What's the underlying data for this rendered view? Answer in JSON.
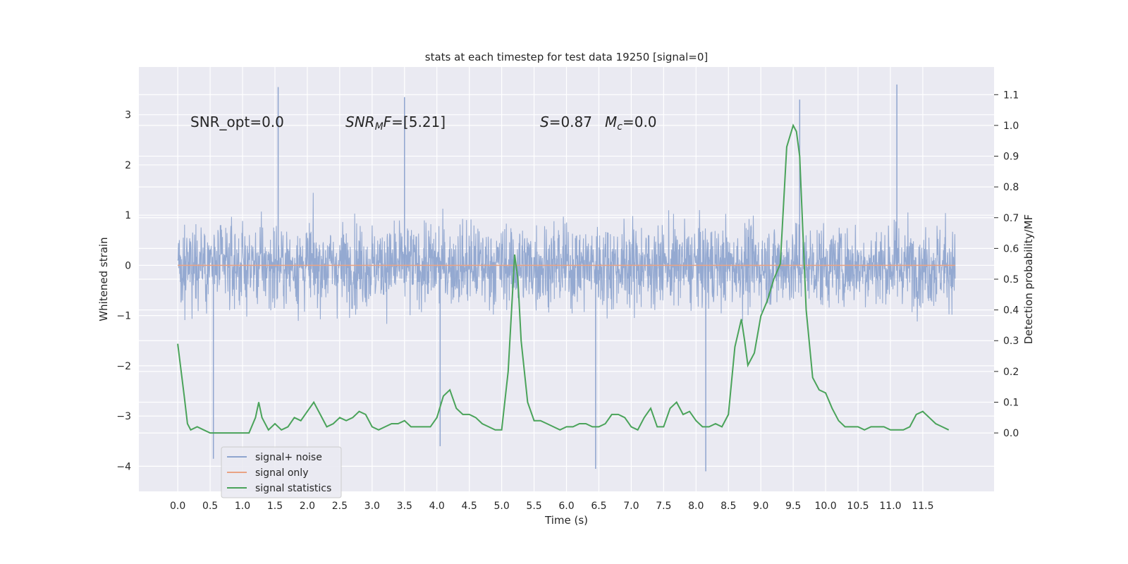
{
  "chart_data": {
    "type": "line",
    "title": "stats at each timestep for test data 19250 [signal=0]",
    "xlabel": "Time (s)",
    "ylabel_left": "Whitened strain",
    "ylabel_right": "Detection probability/MF",
    "xlim": [
      -0.6,
      12.6
    ],
    "ylim_left": [
      -4.5,
      3.95
    ],
    "ylim_right": [
      -0.19,
      1.19
    ],
    "x_ticks": [
      "0.0",
      "0.5",
      "1.0",
      "1.5",
      "2.0",
      "2.5",
      "3.0",
      "3.5",
      "4.0",
      "4.5",
      "5.0",
      "5.5",
      "6.0",
      "6.5",
      "7.0",
      "7.5",
      "8.0",
      "8.5",
      "9.0",
      "9.5",
      "10.0",
      "10.5",
      "11.0",
      "11.5"
    ],
    "y_ticks_left": [
      "−4",
      "−3",
      "−2",
      "−1",
      "0",
      "1",
      "2",
      "3"
    ],
    "y_ticks_right": [
      "0.0",
      "0.1",
      "0.2",
      "0.3",
      "0.4",
      "0.5",
      "0.6",
      "0.7",
      "0.8",
      "0.9",
      "1.0",
      "1.1"
    ],
    "grid": true,
    "legend_position": "lower-left",
    "annotations": {
      "snr_opt": "SNR_opt=0.0",
      "snr_mf": "SNR",
      "snr_mf_sub": "M",
      "snr_mf_rest": "F=[5.21]",
      "s_sym": "S",
      "s_val": "=0.87",
      "mc_sym": "M",
      "mc_sub": "c",
      "mc_val": "=0.0"
    },
    "series": [
      {
        "name": "signal+ noise",
        "color": "#8fa5cf",
        "axis": "left",
        "style": "dense noise trace",
        "x_range": [
          0.0,
          12.0
        ],
        "typical_band": [
          -1.5,
          1.5
        ],
        "spike_peaks": [
          {
            "x": 1.55,
            "y": 3.55
          },
          {
            "x": 3.5,
            "y": 3.35
          },
          {
            "x": 6.45,
            "y": -4.05
          },
          {
            "x": 8.15,
            "y": -4.1
          },
          {
            "x": 11.1,
            "y": 3.6
          },
          {
            "x": 0.55,
            "y": -3.85
          },
          {
            "x": 4.05,
            "y": -3.6
          },
          {
            "x": 9.6,
            "y": 3.3
          }
        ]
      },
      {
        "name": "signal only",
        "color": "#e9a384",
        "axis": "left",
        "x": [
          0.0,
          12.0
        ],
        "values": [
          0.0,
          0.0
        ]
      },
      {
        "name": "signal statistics",
        "color": "#4aa35a",
        "axis": "right",
        "x": [
          0.0,
          0.1,
          0.15,
          0.2,
          0.3,
          0.4,
          0.5,
          0.6,
          0.7,
          0.8,
          0.9,
          1.0,
          1.1,
          1.2,
          1.25,
          1.3,
          1.4,
          1.5,
          1.6,
          1.7,
          1.8,
          1.9,
          2.0,
          2.1,
          2.2,
          2.3,
          2.4,
          2.5,
          2.6,
          2.7,
          2.8,
          2.9,
          3.0,
          3.1,
          3.2,
          3.3,
          3.4,
          3.5,
          3.6,
          3.7,
          3.8,
          3.9,
          4.0,
          4.1,
          4.2,
          4.3,
          4.4,
          4.5,
          4.6,
          4.7,
          4.8,
          4.9,
          5.0,
          5.1,
          5.2,
          5.25,
          5.3,
          5.4,
          5.5,
          5.6,
          5.7,
          5.8,
          5.9,
          6.0,
          6.1,
          6.2,
          6.3,
          6.4,
          6.5,
          6.6,
          6.7,
          6.8,
          6.9,
          7.0,
          7.1,
          7.2,
          7.3,
          7.4,
          7.5,
          7.6,
          7.7,
          7.8,
          7.9,
          8.0,
          8.1,
          8.2,
          8.3,
          8.4,
          8.5,
          8.6,
          8.7,
          8.75,
          8.8,
          8.9,
          9.0,
          9.1,
          9.2,
          9.3,
          9.4,
          9.5,
          9.55,
          9.6,
          9.7,
          9.8,
          9.9,
          10.0,
          10.1,
          10.2,
          10.3,
          10.4,
          10.5,
          10.6,
          10.7,
          10.8,
          10.9,
          11.0,
          11.1,
          11.2,
          11.3,
          11.4,
          11.5,
          11.6,
          11.7,
          11.8,
          11.9
        ],
        "values": [
          0.29,
          0.12,
          0.03,
          0.01,
          0.02,
          0.01,
          0.0,
          0.0,
          0.0,
          0.0,
          0.0,
          0.0,
          0.0,
          0.05,
          0.1,
          0.05,
          0.01,
          0.03,
          0.01,
          0.02,
          0.05,
          0.04,
          0.07,
          0.1,
          0.06,
          0.02,
          0.03,
          0.05,
          0.04,
          0.05,
          0.07,
          0.06,
          0.02,
          0.01,
          0.02,
          0.03,
          0.03,
          0.04,
          0.02,
          0.02,
          0.02,
          0.02,
          0.05,
          0.12,
          0.14,
          0.08,
          0.06,
          0.06,
          0.05,
          0.03,
          0.02,
          0.01,
          0.01,
          0.2,
          0.58,
          0.5,
          0.3,
          0.1,
          0.04,
          0.04,
          0.03,
          0.02,
          0.01,
          0.02,
          0.02,
          0.03,
          0.03,
          0.02,
          0.02,
          0.03,
          0.06,
          0.06,
          0.05,
          0.02,
          0.01,
          0.05,
          0.08,
          0.02,
          0.02,
          0.08,
          0.1,
          0.06,
          0.07,
          0.04,
          0.02,
          0.02,
          0.03,
          0.02,
          0.06,
          0.28,
          0.37,
          0.3,
          0.22,
          0.26,
          0.38,
          0.43,
          0.5,
          0.55,
          0.93,
          1.0,
          0.98,
          0.9,
          0.4,
          0.18,
          0.14,
          0.13,
          0.08,
          0.04,
          0.02,
          0.02,
          0.02,
          0.01,
          0.02,
          0.02,
          0.02,
          0.01,
          0.01,
          0.01,
          0.02,
          0.06,
          0.07,
          0.05,
          0.03,
          0.02,
          0.01
        ]
      }
    ]
  }
}
